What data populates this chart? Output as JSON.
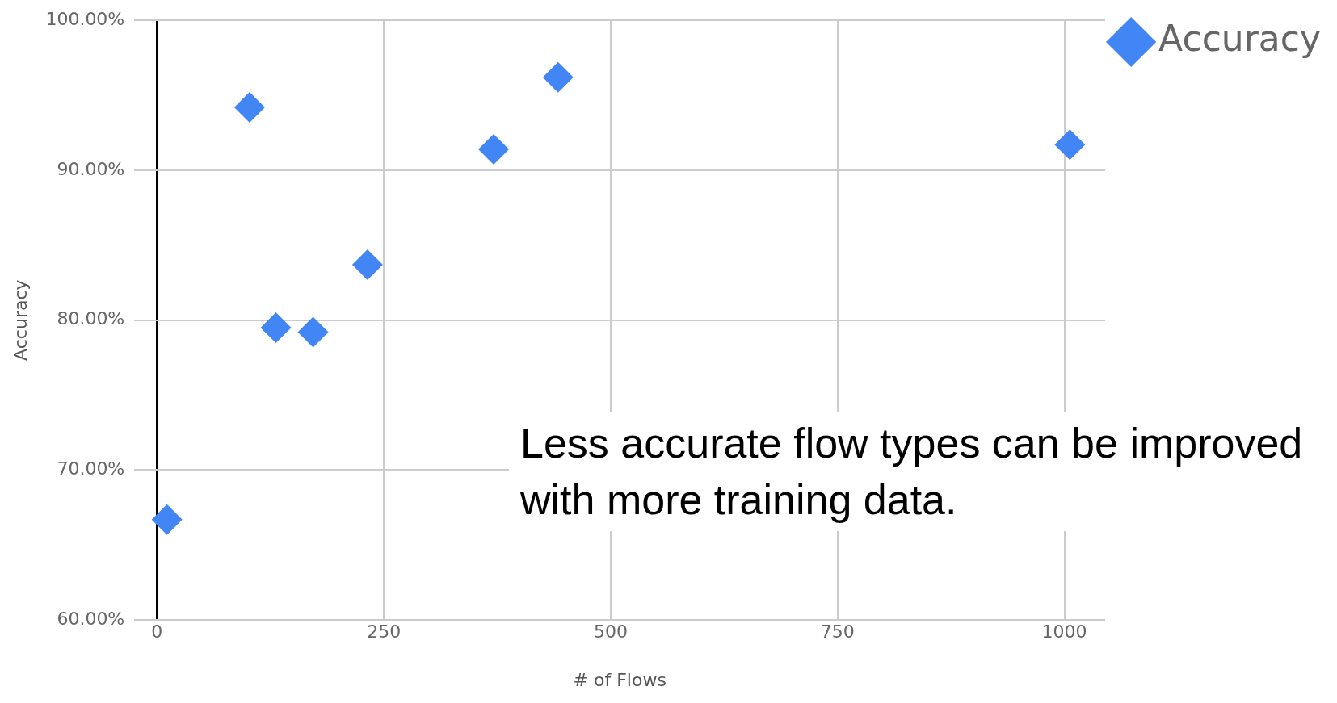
{
  "chart_data": {
    "type": "scatter",
    "xlabel": "# of Flows",
    "ylabel": "Accuracy",
    "x": [
      11,
      102,
      131,
      172,
      232,
      371,
      442,
      1006
    ],
    "series": [
      {
        "name": "Accuracy",
        "color": "#4285f4",
        "values": [
          66.7,
          94.2,
          79.5,
          79.2,
          83.7,
          91.4,
          96.2,
          91.7
        ]
      }
    ],
    "xlim": [
      -25,
      1045
    ],
    "xticks": [
      0,
      250,
      500,
      750,
      1000
    ],
    "ylim": [
      60,
      100
    ],
    "yticks": [
      {
        "value": 60,
        "label": "60.00%"
      },
      {
        "value": 70,
        "label": "70.00%"
      },
      {
        "value": 80,
        "label": "80.00%"
      },
      {
        "value": 90,
        "label": "90.00%"
      },
      {
        "value": 100,
        "label": "100.00%"
      }
    ],
    "grid": true,
    "legend": "top right",
    "marker": "diamond",
    "annotations": [
      "Less accurate flow types can be improved with more training data."
    ]
  }
}
